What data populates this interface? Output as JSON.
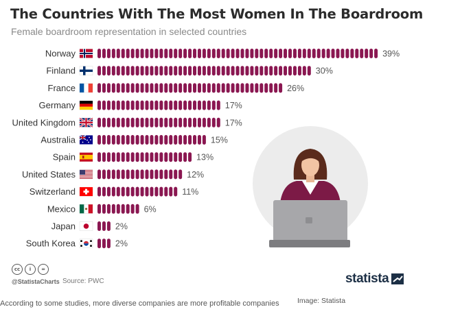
{
  "colors": {
    "bar": "#8a1751",
    "title": "#2b2b2b",
    "subtitle": "#8a8a8a",
    "brand": "#1c2f45"
  },
  "footer": {
    "handle": "@StatistaCharts",
    "source": "Source: PWC",
    "brand": "statista",
    "caption": "According to some studies, more diverse companies are more profitable companies",
    "credit": "Image: Statista",
    "cc_icons": [
      "cc-icon",
      "by-icon",
      "nd-icon"
    ]
  },
  "illustration": {
    "icon": "businesswoman-laptop-icon"
  },
  "chart_data": {
    "type": "bar",
    "orientation": "horizontal",
    "title": "The Countries With The Most Women In The Boardroom",
    "subtitle": "Female boardroom representation in selected countries",
    "unit": "%",
    "categories": [
      "Norway",
      "Finland",
      "France",
      "Germany",
      "United Kingdom",
      "Australia",
      "Spain",
      "United States",
      "Switzerland",
      "Mexico",
      "Japan",
      "South Korea"
    ],
    "values": [
      39,
      30,
      26,
      17,
      17,
      15,
      13,
      12,
      11,
      6,
      2,
      2
    ],
    "value_labels": [
      "39%",
      "30%",
      "26%",
      "17%",
      "17%",
      "15%",
      "13%",
      "12%",
      "11%",
      "6%",
      "2%",
      "2%"
    ],
    "flags": [
      "flag-norway-icon",
      "flag-finland-icon",
      "flag-france-icon",
      "flag-germany-icon",
      "flag-uk-icon",
      "flag-australia-icon",
      "flag-spain-icon",
      "flag-usa-icon",
      "flag-switzerland-icon",
      "flag-mexico-icon",
      "flag-japan-icon",
      "flag-south-korea-icon"
    ],
    "xlim": [
      0,
      39
    ],
    "grid": false,
    "legend": "none"
  }
}
